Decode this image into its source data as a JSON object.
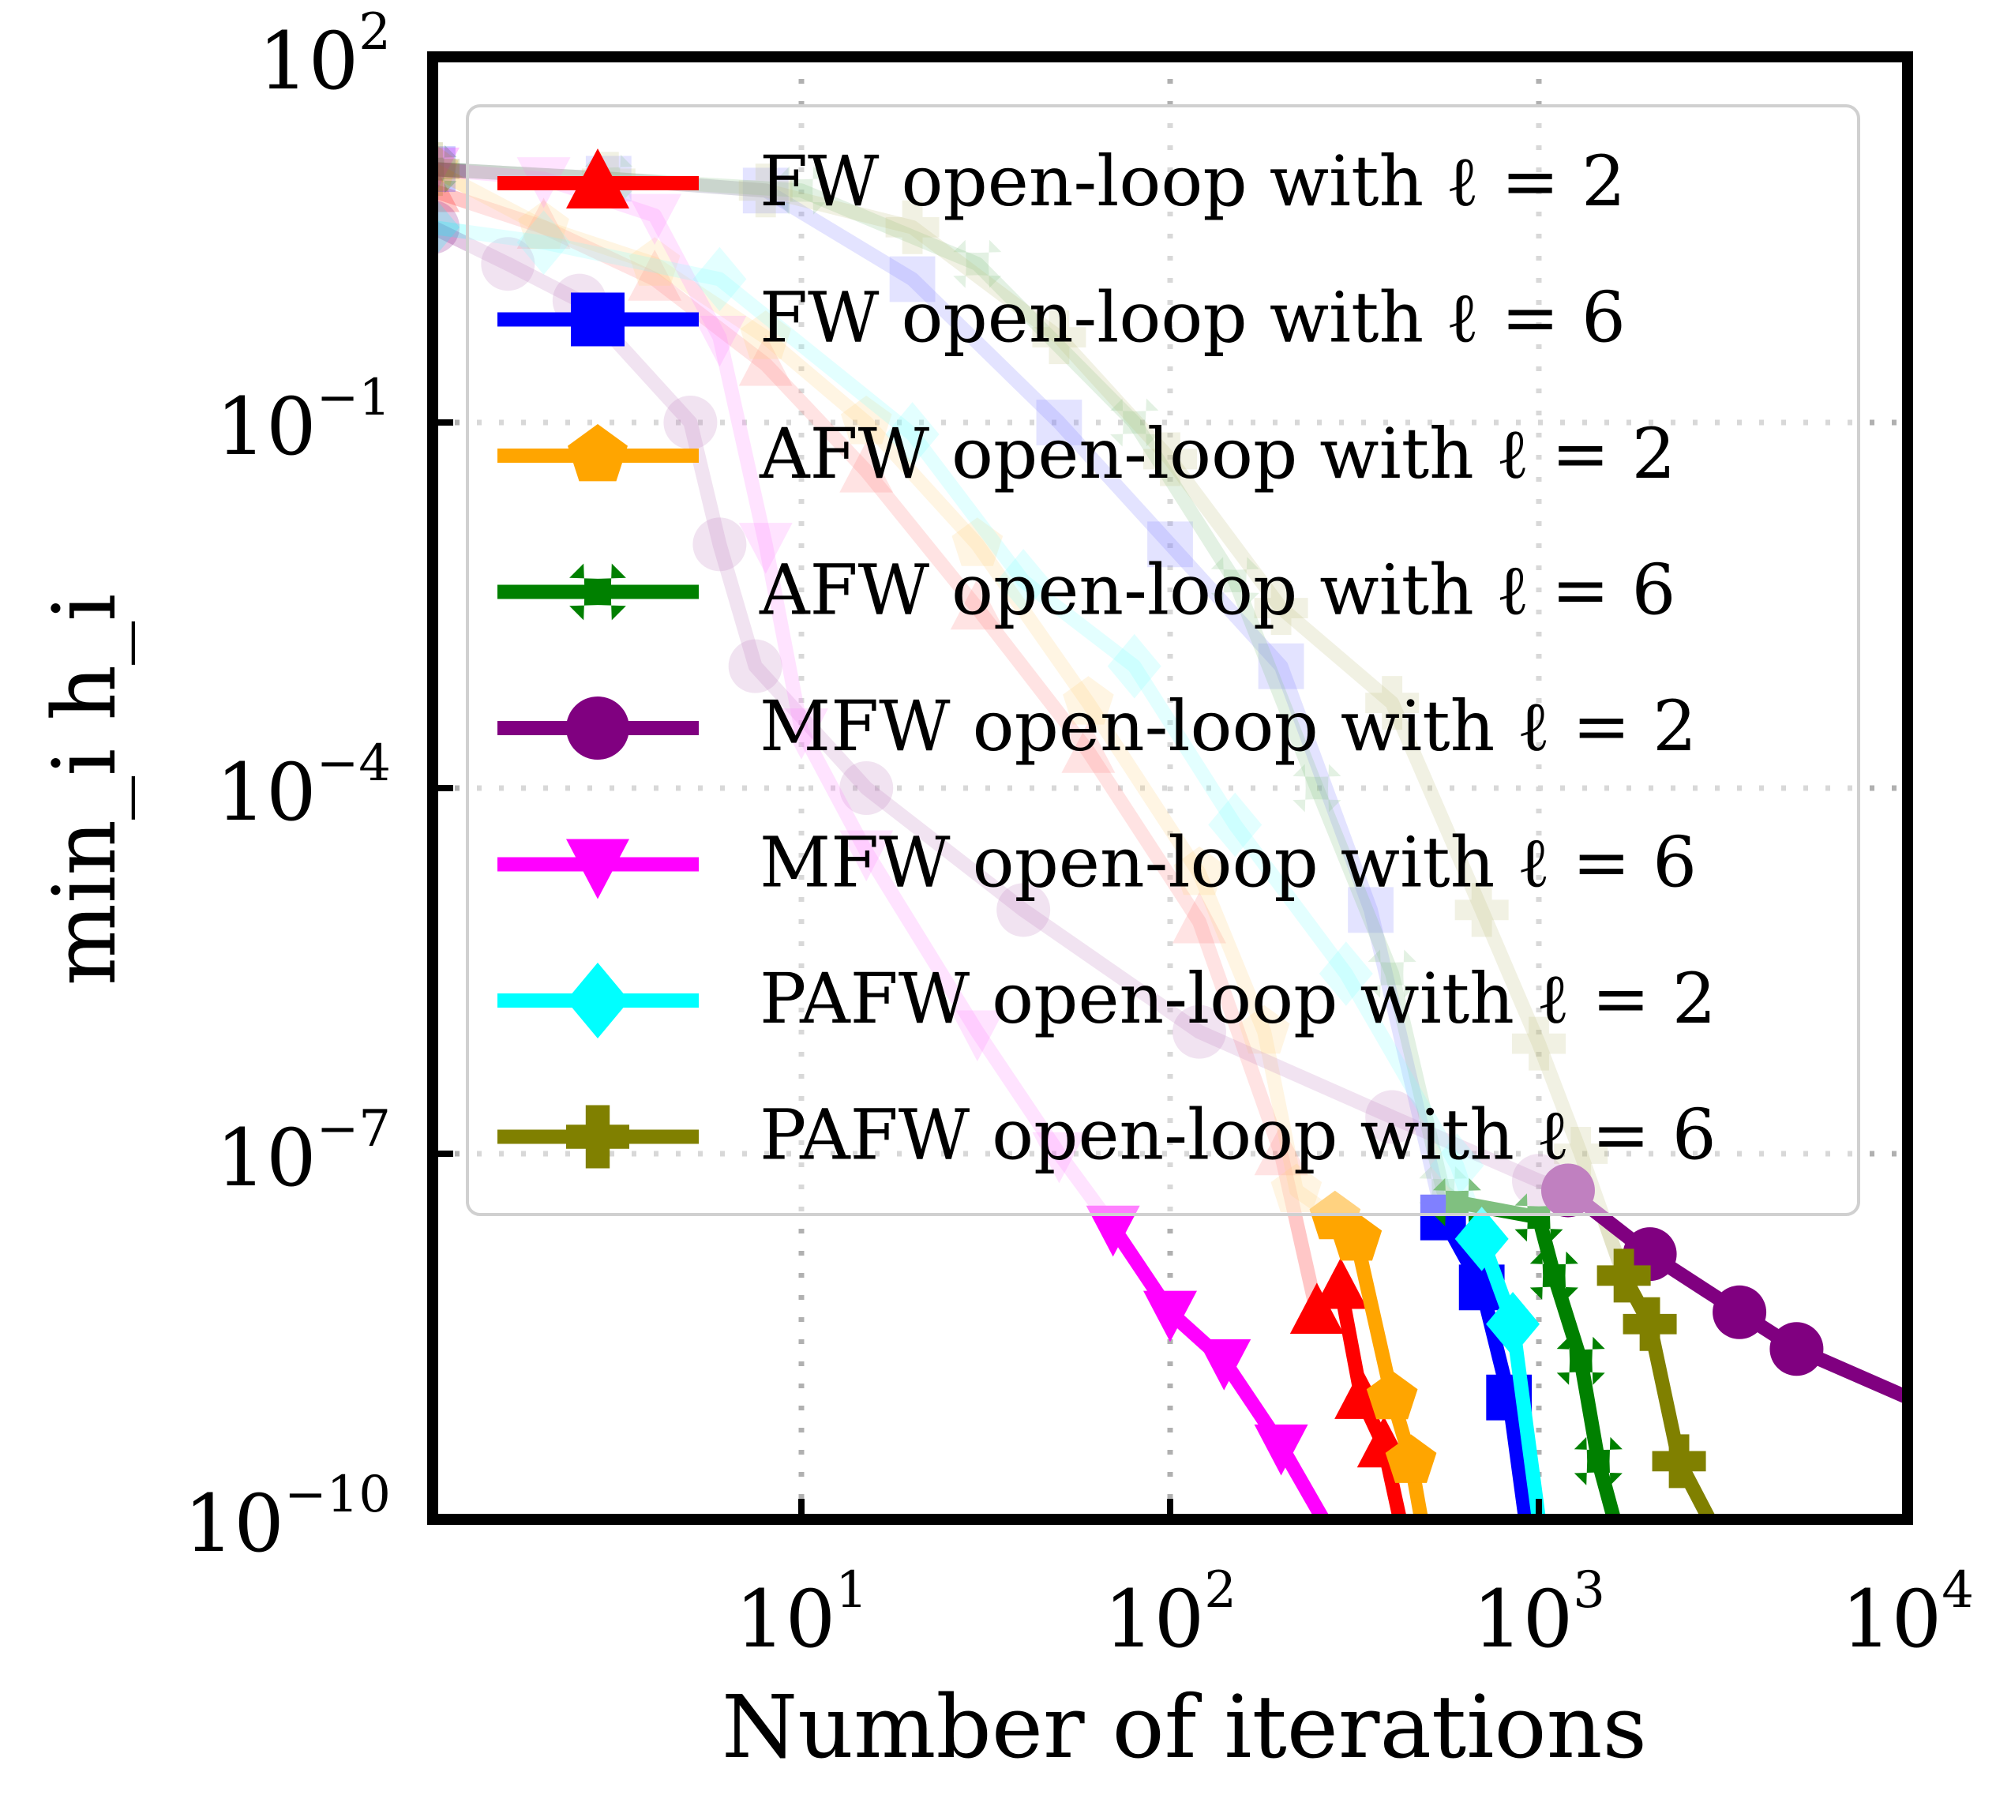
{
  "chart_data": {
    "type": "line",
    "title": "",
    "xlabel": "Number of iterations",
    "ylabel": "min_i h_i",
    "xscale": "log",
    "yscale": "log",
    "xlim": [
      1,
      10000
    ],
    "ylim": [
      1e-10,
      100
    ],
    "grid": true,
    "legend_placement": "upper-right",
    "x_ticks": [
      {
        "base": "10",
        "exp": "1"
      },
      {
        "base": "10",
        "exp": "2"
      },
      {
        "base": "10",
        "exp": "3"
      },
      {
        "base": "10",
        "exp": "4"
      }
    ],
    "y_ticks": [
      {
        "base": "10",
        "exp": "2"
      },
      {
        "base": "10",
        "exp": "−1"
      },
      {
        "base": "10",
        "exp": "−4"
      },
      {
        "base": "10",
        "exp": "−7"
      },
      {
        "base": "10",
        "exp": "−10"
      }
    ],
    "series": [
      {
        "name": "FW open-loop with ℓ = 2",
        "color": "#ff0000",
        "marker": "triangle-up",
        "faded_x": [
          1,
          2,
          4,
          8,
          15,
          30,
          60,
          120,
          200
        ],
        "faded_y": [
          8,
          4,
          1.5,
          0.3,
          0.04,
          0.003,
          0.0002,
          8e-06,
          1e-07
        ],
        "solid_x": [
          250,
          290,
          330,
          380,
          420
        ],
        "solid_y": [
          5e-09,
          8e-09,
          1e-09,
          4e-10,
          1e-10
        ]
      },
      {
        "name": "FW open-loop with ℓ = 6",
        "color": "#0000ff",
        "marker": "square",
        "faded_x": [
          1,
          3,
          8,
          20,
          50,
          100,
          200,
          350
        ],
        "faded_y": [
          12,
          10,
          8,
          1.5,
          0.1,
          0.01,
          0.001,
          1e-05
        ],
        "solid_x": [
          550,
          700,
          830,
          920
        ],
        "solid_y": [
          3e-08,
          8e-09,
          1e-09,
          1e-10
        ]
      },
      {
        "name": "AFW open-loop with ℓ = 2",
        "color": "#ffa500",
        "marker": "pentagon",
        "faded_x": [
          1,
          2,
          4,
          8,
          15,
          30,
          60,
          120,
          180,
          220
        ],
        "faded_y": [
          12,
          4,
          2,
          0.5,
          0.1,
          0.01,
          0.0005,
          2e-05,
          1e-06,
          5e-08
        ],
        "solid_x": [
          280,
          320,
          400,
          450,
          480
        ],
        "solid_y": [
          3e-08,
          2e-08,
          1e-09,
          3e-10,
          1e-10
        ]
      },
      {
        "name": "AFW open-loop with ℓ = 6",
        "color": "#008000",
        "marker": "x",
        "faded_x": [
          1,
          3,
          10,
          30,
          80,
          150,
          250,
          400,
          550
        ],
        "faded_y": [
          12,
          10,
          8,
          2,
          0.1,
          0.005,
          0.0001,
          3e-06,
          5e-08
        ],
        "solid_x": [
          600,
          1000,
          1100,
          1300,
          1450,
          1600
        ],
        "solid_y": [
          4e-08,
          3e-08,
          1e-08,
          2e-09,
          3e-10,
          1e-10
        ]
      },
      {
        "name": "MFW open-loop with ℓ = 2",
        "color": "#800080",
        "marker": "circle",
        "faded_x": [
          1,
          1.6,
          2.5,
          5,
          6,
          7.5,
          15,
          40,
          120,
          400,
          1000
        ],
        "faded_y": [
          4,
          2,
          1,
          0.1,
          0.01,
          0.001,
          0.0001,
          1e-05,
          1e-06,
          2e-07,
          6e-08
        ],
        "solid_x": [
          1200,
          2000,
          3500,
          5000,
          10000
        ],
        "solid_y": [
          5e-08,
          1.5e-08,
          5e-09,
          2.5e-09,
          1e-09
        ]
      },
      {
        "name": "MFW open-loop with ℓ = 6",
        "color": "#ff00ff",
        "marker": "triangle-down",
        "faded_x": [
          1,
          2,
          4,
          6,
          8,
          10,
          15,
          30,
          50
        ],
        "faded_y": [
          12,
          10,
          5,
          0.5,
          0.01,
          0.0003,
          3e-05,
          1e-06,
          1e-07
        ],
        "solid_x": [
          70,
          100,
          140,
          200,
          260
        ],
        "solid_y": [
          2.5e-08,
          5e-09,
          2e-09,
          4e-10,
          1e-10
        ]
      },
      {
        "name": "PAFW open-loop with ℓ = 2",
        "color": "#00ffff",
        "marker": "diamond",
        "faded_x": [
          1,
          2,
          6,
          20,
          40,
          80,
          150,
          300,
          600
        ],
        "faded_y": [
          4,
          3,
          1.5,
          0.08,
          0.005,
          0.001,
          5e-05,
          3e-06,
          8e-08
        ],
        "solid_x": [
          700,
          850,
          1000
        ],
        "solid_y": [
          2e-08,
          4e-09,
          1e-10
        ]
      },
      {
        "name": "PAFW open-loop with ℓ = 6",
        "color": "#808000",
        "marker": "plus",
        "faded_x": [
          1,
          3,
          8,
          20,
          50,
          100,
          200,
          400,
          700,
          1000,
          1300
        ],
        "faded_y": [
          12,
          10,
          8,
          4,
          0.5,
          0.05,
          0.003,
          0.0005,
          1e-05,
          8e-07,
          1e-07
        ],
        "solid_x": [
          1700,
          2000,
          2400,
          2900
        ],
        "solid_y": [
          1e-08,
          4e-09,
          3e-10,
          1e-10
        ]
      }
    ]
  }
}
